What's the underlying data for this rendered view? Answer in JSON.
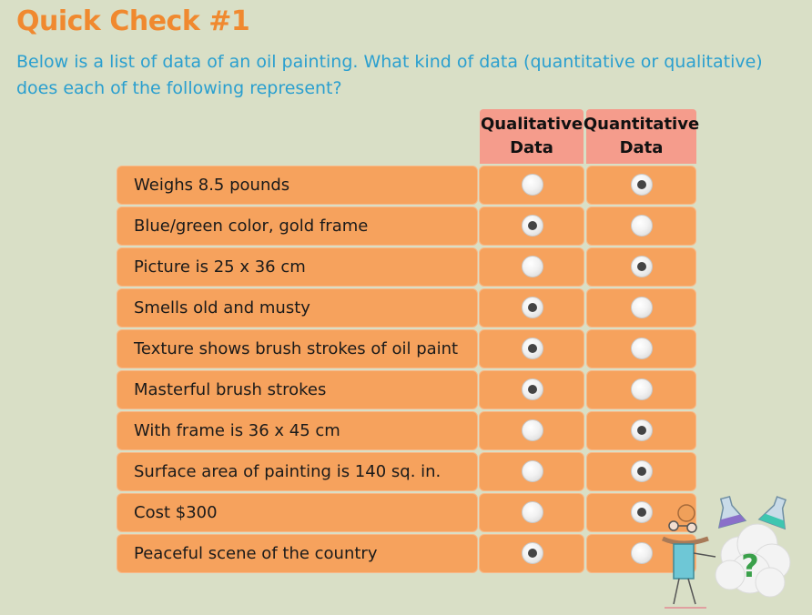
{
  "title": "Quick Check #1",
  "question": "Below is a list of data of an oil painting. What kind of data (quantitative or qualitative) does each of the following represent?",
  "columns": {
    "qualitative": "Qualitative\nData",
    "quantitative": "Quantitative\nData"
  },
  "rows": [
    {
      "label": "Weighs 8.5 pounds",
      "selected": "quantitative"
    },
    {
      "label": "Blue/green color, gold frame",
      "selected": "qualitative"
    },
    {
      "label": "Picture is 25 x 36 cm",
      "selected": "quantitative"
    },
    {
      "label": "Smells old and musty",
      "selected": "qualitative"
    },
    {
      "label": "Texture shows brush strokes of oil paint",
      "selected": "qualitative"
    },
    {
      "label": "Masterful brush strokes",
      "selected": "qualitative"
    },
    {
      "label": "With frame is 36 x 45 cm",
      "selected": "quantitative"
    },
    {
      "label": "Surface area of painting is 140 sq. in.",
      "selected": "quantitative"
    },
    {
      "label": "Cost $300",
      "selected": "quantitative"
    },
    {
      "label": "Peaceful scene of the country",
      "selected": "qualitative"
    }
  ],
  "mascot_icon": "?",
  "colors": {
    "background": "#d9dfc6",
    "title": "#f0892f",
    "question": "#2a9fcf",
    "header": "#f59c8c",
    "row": "#f6a25d"
  }
}
